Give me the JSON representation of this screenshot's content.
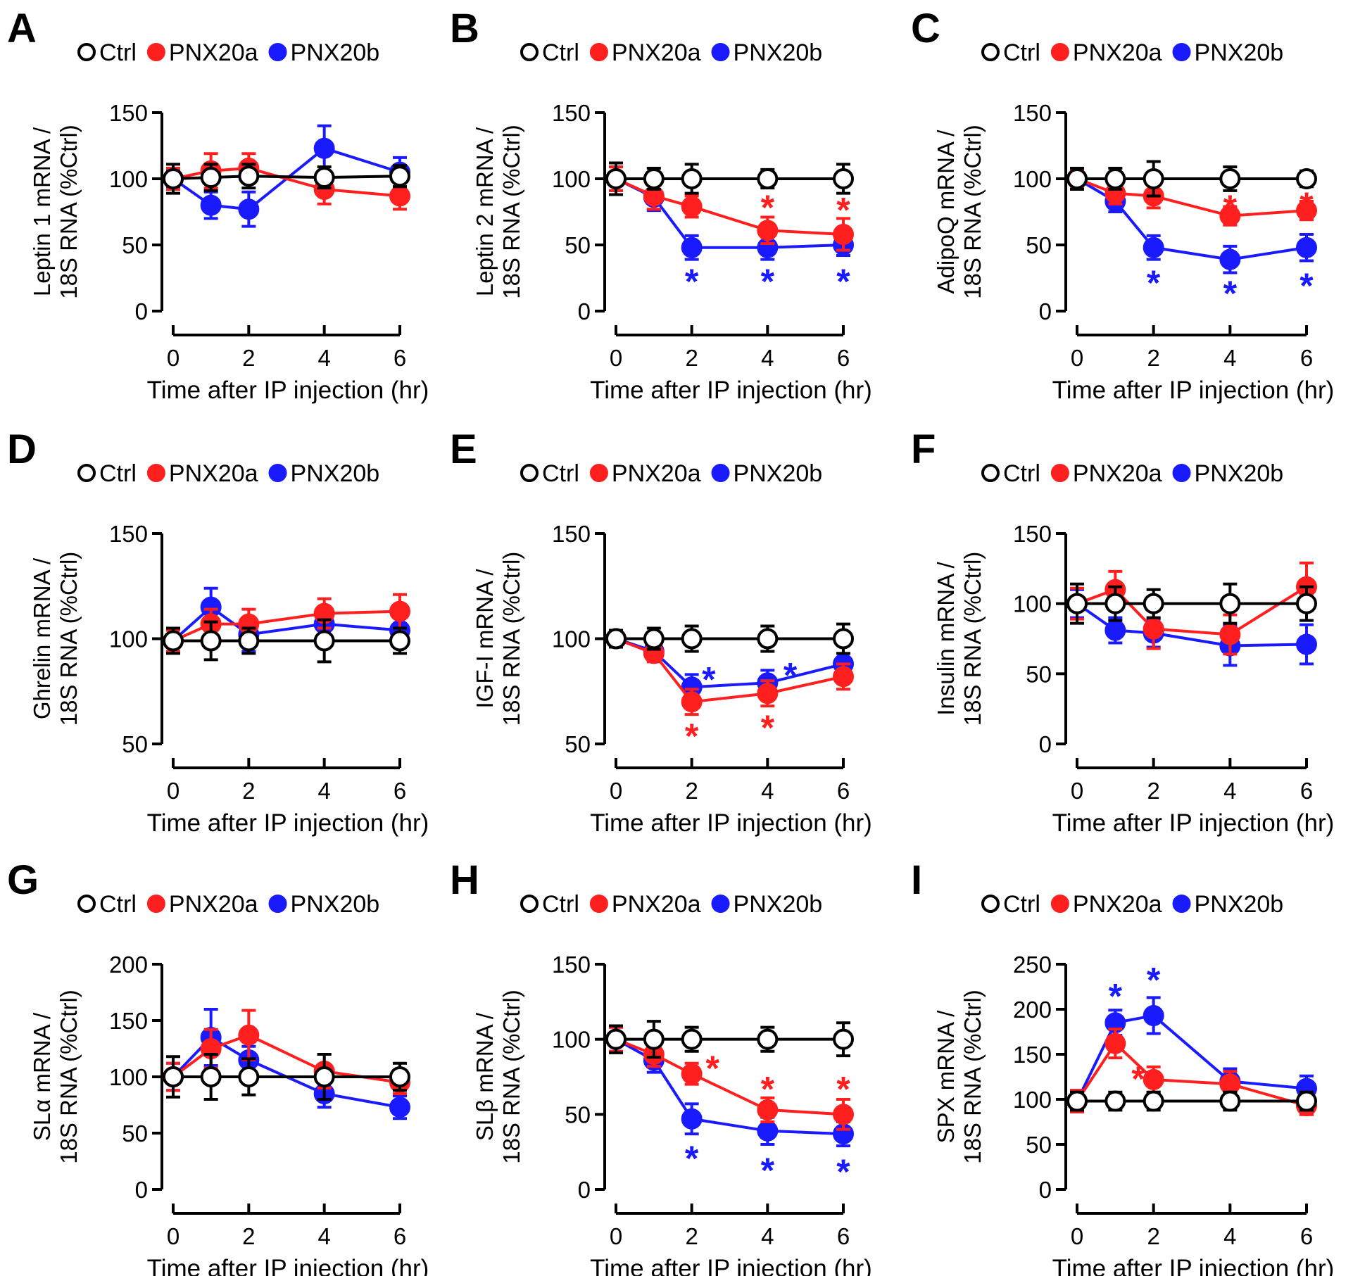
{
  "colors": {
    "ctrl": "#000000",
    "pnx20a": "#ff1f1f",
    "pnx20b": "#1a1aff"
  },
  "chart_data": [
    {
      "type": "line",
      "panel_label": "A",
      "ylabel": [
        "Leptin 1 mRNA /",
        "18S RNA (%Ctrl)"
      ],
      "xlabel": "Time after IP injection (hr)",
      "ylim": [
        0,
        150
      ],
      "yticks": [
        "0",
        "50",
        "100",
        "150"
      ],
      "xlim": [
        0,
        6
      ],
      "xticks": [
        "0",
        "2",
        "4",
        "6"
      ],
      "legend": [
        "Ctrl",
        "PNX20a",
        "PNX20b"
      ],
      "x": [
        0,
        1,
        2,
        4,
        6
      ],
      "series": [
        {
          "name": "Ctrl",
          "values": [
            100,
            101,
            102,
            101,
            102
          ],
          "errors": [
            11,
            10,
            9,
            8,
            8
          ]
        },
        {
          "name": "PNX20a",
          "values": [
            100,
            106,
            108,
            92,
            87
          ],
          "errors": [
            8,
            13,
            11,
            11,
            10
          ]
        },
        {
          "name": "PNX20b",
          "values": [
            100,
            80,
            77,
            123,
            105
          ],
          "errors": [
            7,
            10,
            13,
            17,
            11
          ]
        }
      ],
      "annotations": []
    },
    {
      "type": "line",
      "panel_label": "B",
      "ylabel": [
        "Leptin 2 mRNA /",
        "18S RNA (%Ctrl)"
      ],
      "xlabel": "Time after IP injection (hr)",
      "ylim": [
        0,
        150
      ],
      "yticks": [
        "0",
        "50",
        "100",
        "150"
      ],
      "xlim": [
        0,
        6
      ],
      "xticks": [
        "0",
        "2",
        "4",
        "6"
      ],
      "legend": [
        "Ctrl",
        "PNX20a",
        "PNX20b"
      ],
      "x": [
        0,
        1,
        2,
        4,
        6
      ],
      "series": [
        {
          "name": "Ctrl",
          "values": [
            100,
            100,
            100,
            100,
            100
          ],
          "errors": [
            12,
            8,
            11,
            7,
            11
          ]
        },
        {
          "name": "PNX20a",
          "values": [
            100,
            87,
            79,
            61,
            58
          ],
          "errors": [
            9,
            10,
            8,
            10,
            12
          ]
        },
        {
          "name": "PNX20b",
          "values": [
            100,
            86,
            48,
            48,
            50
          ],
          "errors": [
            9,
            10,
            9,
            9,
            8
          ]
        }
      ],
      "annotations": [
        {
          "text": "*",
          "series": "PNX20a",
          "x": 4,
          "y": 82
        },
        {
          "text": "*",
          "series": "PNX20a",
          "x": 6,
          "y": 80
        },
        {
          "text": "*",
          "series": "PNX20b",
          "x": 2,
          "y": 26
        },
        {
          "text": "*",
          "series": "PNX20b",
          "x": 4,
          "y": 26
        },
        {
          "text": "*",
          "series": "PNX20b",
          "x": 6,
          "y": 26
        }
      ]
    },
    {
      "type": "line",
      "panel_label": "C",
      "ylabel": [
        "AdipoQ mRNA /",
        "18S RNA (%Ctrl)"
      ],
      "xlabel": "Time after IP injection (hr)",
      "ylim": [
        0,
        150
      ],
      "yticks": [
        "0",
        "50",
        "100",
        "150"
      ],
      "xlim": [
        0,
        6
      ],
      "xticks": [
        "0",
        "2",
        "4",
        "6"
      ],
      "legend": [
        "Ctrl",
        "PNX20a",
        "PNX20b"
      ],
      "x": [
        0,
        1,
        2,
        4,
        6
      ],
      "series": [
        {
          "name": "Ctrl",
          "values": [
            100,
            100,
            100,
            100,
            100
          ],
          "errors": [
            8,
            8,
            13,
            9,
            6
          ]
        },
        {
          "name": "PNX20a",
          "values": [
            100,
            89,
            87,
            72,
            76
          ],
          "errors": [
            7,
            8,
            9,
            7,
            7
          ]
        },
        {
          "name": "PNX20b",
          "values": [
            100,
            83,
            48,
            39,
            48
          ],
          "errors": [
            7,
            8,
            9,
            10,
            10
          ]
        }
      ],
      "annotations": [
        {
          "text": "*",
          "series": "PNX20a",
          "x": 4,
          "y": 82
        },
        {
          "text": "*",
          "series": "PNX20a",
          "x": 6,
          "y": 84
        },
        {
          "text": "*",
          "series": "PNX20b",
          "x": 2,
          "y": 25
        },
        {
          "text": "*",
          "series": "PNX20b",
          "x": 4,
          "y": 17
        },
        {
          "text": "*",
          "series": "PNX20b",
          "x": 6,
          "y": 23
        }
      ]
    },
    {
      "type": "line",
      "panel_label": "D",
      "ylabel": [
        "Ghrelin mRNA /",
        "18S RNA (%Ctrl)"
      ],
      "xlabel": "Time after IP injection (hr)",
      "ylim": [
        50,
        150
      ],
      "yticks": [
        "50",
        "100",
        "150"
      ],
      "xlim": [
        0,
        6
      ],
      "xticks": [
        "0",
        "2",
        "4",
        "6"
      ],
      "legend": [
        "Ctrl",
        "PNX20a",
        "PNX20b"
      ],
      "x": [
        0,
        1,
        2,
        4,
        6
      ],
      "series": [
        {
          "name": "Ctrl",
          "values": [
            99,
            99,
            99,
            99,
            99
          ],
          "errors": [
            6,
            9,
            6,
            10,
            6
          ]
        },
        {
          "name": "PNX20a",
          "values": [
            99,
            107,
            107,
            112,
            113
          ],
          "errors": [
            5,
            7,
            7,
            7,
            8
          ]
        },
        {
          "name": "PNX20b",
          "values": [
            99,
            115,
            102,
            107,
            104
          ],
          "errors": [
            5,
            9,
            8,
            7,
            7
          ]
        }
      ],
      "annotations": []
    },
    {
      "type": "line",
      "panel_label": "E",
      "ylabel": [
        "IGF-I mRNA /",
        "18S RNA (%Ctrl)"
      ],
      "xlabel": "Time after IP injection (hr)",
      "ylim": [
        50,
        150
      ],
      "yticks": [
        "50",
        "100",
        "150"
      ],
      "xlim": [
        0,
        6
      ],
      "xticks": [
        "0",
        "2",
        "4",
        "6"
      ],
      "legend": [
        "Ctrl",
        "PNX20a",
        "PNX20b"
      ],
      "x": [
        0,
        1,
        2,
        4,
        6
      ],
      "series": [
        {
          "name": "Ctrl",
          "values": [
            100,
            100,
            100,
            100,
            100
          ],
          "errors": [
            4,
            5,
            6,
            6,
            7
          ]
        },
        {
          "name": "PNX20a",
          "values": [
            100,
            93,
            70,
            74,
            82
          ],
          "errors": [
            4,
            4,
            6,
            6,
            6
          ]
        },
        {
          "name": "PNX20b",
          "values": [
            100,
            94,
            77,
            79,
            88
          ],
          "errors": [
            4,
            4,
            6,
            6,
            5
          ]
        }
      ],
      "annotations": [
        {
          "text": "*",
          "series": "PNX20b",
          "x": 2.45,
          "y": 83
        },
        {
          "text": "*",
          "series": "PNX20b",
          "x": 4.6,
          "y": 85
        },
        {
          "text": "*",
          "series": "PNX20a",
          "x": 2,
          "y": 56
        },
        {
          "text": "*",
          "series": "PNX20a",
          "x": 4,
          "y": 60
        }
      ]
    },
    {
      "type": "line",
      "panel_label": "F",
      "ylabel": [
        "Insulin mRNA /",
        "18S RNA (%Ctrl)"
      ],
      "xlabel": "Time after IP injection (hr)",
      "ylim": [
        0,
        150
      ],
      "yticks": [
        "0",
        "50",
        "100",
        "150"
      ],
      "xlim": [
        0,
        6
      ],
      "xticks": [
        "0",
        "2",
        "4",
        "6"
      ],
      "legend": [
        "Ctrl",
        "PNX20a",
        "PNX20b"
      ],
      "x": [
        0,
        1,
        2,
        4,
        6
      ],
      "series": [
        {
          "name": "Ctrl",
          "values": [
            100,
            100,
            100,
            100,
            100
          ],
          "errors": [
            14,
            12,
            10,
            14,
            12
          ]
        },
        {
          "name": "PNX20a",
          "values": [
            100,
            110,
            82,
            78,
            112
          ],
          "errors": [
            11,
            13,
            14,
            14,
            17
          ]
        },
        {
          "name": "PNX20b",
          "values": [
            100,
            81,
            79,
            70,
            71
          ],
          "errors": [
            10,
            9,
            10,
            14,
            14
          ]
        }
      ],
      "annotations": []
    },
    {
      "type": "line",
      "panel_label": "G",
      "ylabel": [
        "SLα mRNA /",
        "18S RNA (%Ctrl)"
      ],
      "xlabel": "Time after IP injection (hr)",
      "ylim": [
        0,
        200
      ],
      "yticks": [
        "0",
        "50",
        "100",
        "150",
        "200"
      ],
      "xlim": [
        0,
        6
      ],
      "xticks": [
        "0",
        "2",
        "4",
        "6"
      ],
      "legend": [
        "Ctrl",
        "PNX20a",
        "PNX20b"
      ],
      "x": [
        0,
        1,
        2,
        4,
        6
      ],
      "series": [
        {
          "name": "Ctrl",
          "values": [
            100,
            100,
            100,
            100,
            100
          ],
          "errors": [
            18,
            20,
            16,
            20,
            12
          ]
        },
        {
          "name": "PNX20a",
          "values": [
            100,
            125,
            137,
            105,
            95
          ],
          "errors": [
            12,
            17,
            22,
            15,
            10
          ]
        },
        {
          "name": "PNX20b",
          "values": [
            100,
            135,
            115,
            85,
            73
          ],
          "errors": [
            12,
            25,
            12,
            12,
            10
          ]
        }
      ],
      "annotations": []
    },
    {
      "type": "line",
      "panel_label": "H",
      "ylabel": [
        "SLβ mRNA /",
        "18S RNA (%Ctrl)"
      ],
      "xlabel": "Time after IP injection (hr)",
      "ylim": [
        0,
        150
      ],
      "yticks": [
        "0",
        "50",
        "100",
        "150"
      ],
      "xlim": [
        0,
        6
      ],
      "xticks": [
        "0",
        "2",
        "4",
        "6"
      ],
      "legend": [
        "Ctrl",
        "PNX20a",
        "PNX20b"
      ],
      "x": [
        0,
        1,
        2,
        4,
        6
      ],
      "series": [
        {
          "name": "Ctrl",
          "values": [
            100,
            100,
            100,
            100,
            100
          ],
          "errors": [
            9,
            12,
            8,
            8,
            11
          ]
        },
        {
          "name": "PNX20a",
          "values": [
            100,
            90,
            77,
            53,
            50
          ],
          "errors": [
            8,
            8,
            7,
            8,
            10
          ]
        },
        {
          "name": "PNX20b",
          "values": [
            100,
            86,
            47,
            39,
            37
          ],
          "errors": [
            8,
            8,
            10,
            9,
            8
          ]
        }
      ],
      "annotations": [
        {
          "text": "*",
          "series": "PNX20a",
          "x": 2.55,
          "y": 84
        },
        {
          "text": "*",
          "series": "PNX20a",
          "x": 4,
          "y": 70
        },
        {
          "text": "*",
          "series": "PNX20a",
          "x": 6,
          "y": 70
        },
        {
          "text": "*",
          "series": "PNX20b",
          "x": 2,
          "y": 24
        },
        {
          "text": "*",
          "series": "PNX20b",
          "x": 4,
          "y": 16
        },
        {
          "text": "*",
          "series": "PNX20b",
          "x": 6,
          "y": 15
        }
      ]
    },
    {
      "type": "line",
      "panel_label": "I",
      "ylabel": [
        "SPX mRNA /",
        "18S RNA (%Ctrl)"
      ],
      "xlabel": "Time after IP injection (hr)",
      "ylim": [
        0,
        250
      ],
      "yticks": [
        "0",
        "50",
        "100",
        "150",
        "200",
        "250"
      ],
      "xlim": [
        0,
        6
      ],
      "xticks": [
        "0",
        "2",
        "4",
        "6"
      ],
      "legend": [
        "Ctrl",
        "PNX20a",
        "PNX20b"
      ],
      "x": [
        0,
        1,
        2,
        4,
        6
      ],
      "series": [
        {
          "name": "Ctrl",
          "values": [
            98,
            98,
            98,
            98,
            98
          ],
          "errors": [
            10,
            10,
            10,
            10,
            10
          ]
        },
        {
          "name": "PNX20a",
          "values": [
            98,
            162,
            122,
            117,
            93
          ],
          "errors": [
            12,
            16,
            14,
            14,
            10
          ]
        },
        {
          "name": "PNX20b",
          "values": [
            98,
            185,
            193,
            120,
            112
          ],
          "errors": [
            12,
            14,
            20,
            14,
            14
          ]
        }
      ],
      "annotations": [
        {
          "text": "*",
          "series": "PNX20b",
          "x": 1,
          "y": 220
        },
        {
          "text": "*",
          "series": "PNX20b",
          "x": 2,
          "y": 238
        },
        {
          "text": "*",
          "series": "PNX20a",
          "x": 1.6,
          "y": 128
        }
      ]
    }
  ]
}
